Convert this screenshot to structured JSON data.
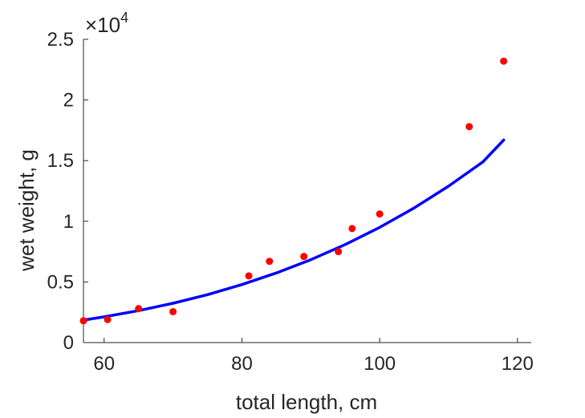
{
  "chart_data": {
    "type": "scatter",
    "title": "",
    "xlabel": "total length, cm",
    "ylabel": "wet weight, g",
    "xlim": [
      57,
      122
    ],
    "ylim": [
      0,
      25000
    ],
    "xticks": [
      60,
      80,
      100,
      120
    ],
    "yticks": [
      0,
      5000,
      10000,
      15000,
      20000,
      25000
    ],
    "ytick_labels": [
      "0",
      "0.5",
      "1",
      "1.5",
      "2",
      "2.5"
    ],
    "y_exponent_prefix": "×10",
    "y_exponent_power": "4",
    "grid": false,
    "series": [
      {
        "kind": "scatter",
        "color": "#ff0000",
        "x": [
          57,
          60.5,
          65,
          70,
          81,
          84,
          89,
          94,
          96,
          100,
          113,
          118
        ],
        "y": [
          1800,
          1900,
          2800,
          2550,
          5500,
          6700,
          7100,
          7500,
          9400,
          10600,
          17800,
          23200
        ]
      },
      {
        "kind": "line",
        "color": "#0000ff",
        "x": [
          57,
          60,
          65,
          70,
          75,
          80,
          85,
          90,
          95,
          100,
          105,
          110,
          115,
          118
        ],
        "y": [
          1850,
          2120,
          2630,
          3240,
          3950,
          4780,
          5740,
          6830,
          8080,
          9500,
          11100,
          12900,
          14900,
          16700
        ]
      }
    ]
  }
}
